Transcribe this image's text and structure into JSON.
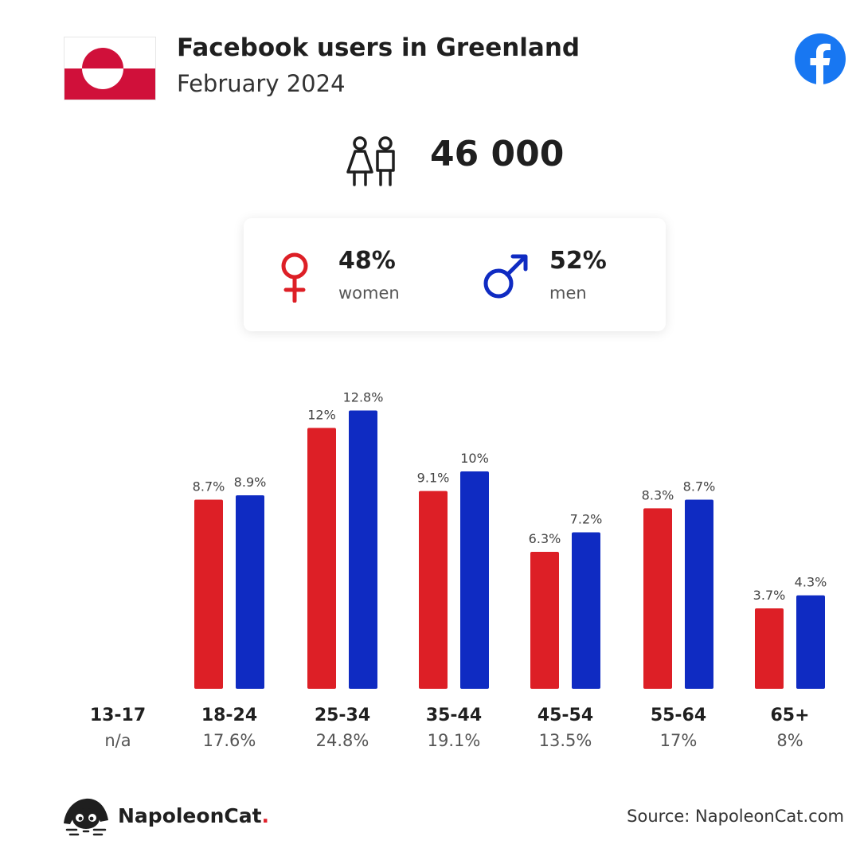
{
  "header": {
    "title": "Facebook users in Greenland",
    "subtitle": "February 2024",
    "flag_colors": {
      "white": "#ffffff",
      "red": "#d0103a"
    },
    "facebook_color": "#1877f2"
  },
  "summary": {
    "total": "46 000",
    "icon": "users-icon"
  },
  "gender": {
    "women": {
      "pct": "48%",
      "label": "women",
      "icon": "female-symbol-icon",
      "color": "#dd1f26"
    },
    "men": {
      "pct": "52%",
      "label": "men",
      "icon": "male-symbol-icon",
      "color": "#0f2bc2"
    }
  },
  "chart_data": {
    "type": "bar",
    "categories": [
      "13-17",
      "18-24",
      "25-34",
      "35-44",
      "45-54",
      "55-64",
      "65+"
    ],
    "category_totals": [
      "n/a",
      "17.6%",
      "24.8%",
      "19.1%",
      "13.5%",
      "17%",
      "8%"
    ],
    "series": [
      {
        "values": [
          null,
          8.7,
          12,
          9.1,
          6.3,
          8.3,
          3.7
        ],
        "labels": [
          "",
          "8.7%",
          "12%",
          "9.1%",
          "6.3%",
          "8.3%",
          "3.7%"
        ],
        "color": "#dd1f26"
      },
      {
        "values": [
          null,
          8.9,
          12.8,
          10,
          7.2,
          8.7,
          4.3
        ],
        "labels": [
          "",
          "8.9%",
          "12.8%",
          "10%",
          "7.2%",
          "8.7%",
          "4.3%"
        ],
        "color": "#0f2bc2"
      }
    ],
    "ylim": [
      0,
      13
    ],
    "grid": false
  },
  "footer": {
    "brand": "NapoleonCat",
    "brand_suffix": ".",
    "source": "Source: NapoleonCat.com"
  }
}
